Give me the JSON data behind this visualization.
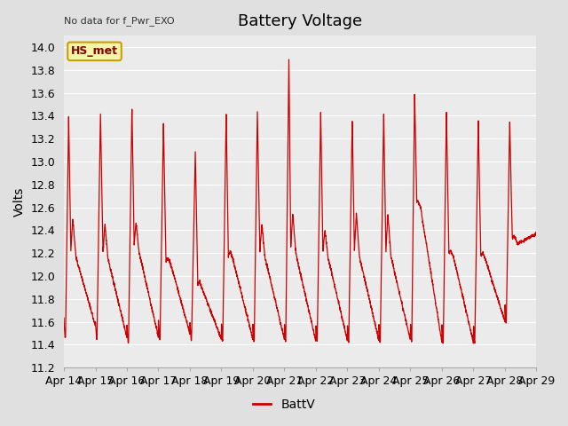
{
  "title": "Battery Voltage",
  "ylabel": "Volts",
  "top_left_text": "No data for f_Pwr_EXO",
  "legend_label": "BattV",
  "legend_box_label": "HS_met",
  "ylim": [
    11.2,
    14.1
  ],
  "yticks": [
    11.2,
    11.4,
    11.6,
    11.8,
    12.0,
    12.2,
    12.4,
    12.6,
    12.8,
    13.0,
    13.2,
    13.4,
    13.6,
    13.8,
    14.0
  ],
  "x_labels": [
    "Apr 14",
    "Apr 15",
    "Apr 16",
    "Apr 17",
    "Apr 18",
    "Apr 19",
    "Apr 20",
    "Apr 21",
    "Apr 22",
    "Apr 23",
    "Apr 24",
    "Apr 25",
    "Apr 26",
    "Apr 27",
    "Apr 28",
    "Apr 29"
  ],
  "line_color": "#cc0000",
  "background_color": "#e0e0e0",
  "plot_bg_color": "#ebebeb",
  "grid_color": "#ffffff",
  "title_fontsize": 13,
  "label_fontsize": 10,
  "tick_fontsize": 9,
  "figsize": [
    6.4,
    4.8
  ],
  "dpi": 100
}
